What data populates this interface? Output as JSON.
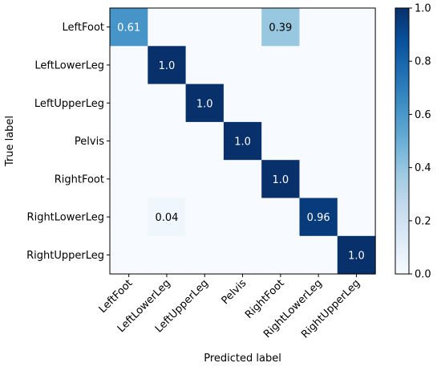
{
  "chart_data": {
    "type": "heatmap",
    "xlabel": "Predicted label",
    "ylabel": "True label",
    "x_categories": [
      "LeftFoot",
      "LeftLowerLeg",
      "LeftUpperLeg",
      "Pelvis",
      "RightFoot",
      "RightLowerLeg",
      "RightUpperLeg"
    ],
    "y_categories": [
      "LeftFoot",
      "LeftLowerLeg",
      "LeftUpperLeg",
      "Pelvis",
      "RightFoot",
      "RightLowerLeg",
      "RightUpperLeg"
    ],
    "values": [
      [
        0.61,
        0,
        0,
        0,
        0.39,
        0,
        0
      ],
      [
        0,
        1.0,
        0,
        0,
        0,
        0,
        0
      ],
      [
        0,
        0,
        1.0,
        0,
        0,
        0,
        0
      ],
      [
        0,
        0,
        0,
        1.0,
        0,
        0,
        0
      ],
      [
        0,
        0,
        0,
        0,
        1.0,
        0,
        0
      ],
      [
        0,
        0.04,
        0,
        0,
        0,
        0.96,
        0
      ],
      [
        0,
        0,
        0,
        0,
        0,
        0,
        1.0
      ]
    ],
    "cell_labels": [
      [
        "0.61",
        "",
        "",
        "",
        "0.39",
        "",
        ""
      ],
      [
        "",
        "1.0",
        "",
        "",
        "",
        "",
        ""
      ],
      [
        "",
        "",
        "1.0",
        "",
        "",
        "",
        ""
      ],
      [
        "",
        "",
        "",
        "1.0",
        "",
        "",
        ""
      ],
      [
        "",
        "",
        "",
        "",
        "1.0",
        "",
        ""
      ],
      [
        "",
        "0.04",
        "",
        "",
        "",
        "0.96",
        ""
      ],
      [
        "",
        "",
        "",
        "",
        "",
        "",
        "1.0"
      ]
    ],
    "colormap": "Blues",
    "colorbar": {
      "range": [
        0.0,
        1.0
      ],
      "ticks": [
        "0.0",
        "0.2",
        "0.4",
        "0.6",
        "0.8",
        "1.0"
      ]
    },
    "grid": false
  }
}
